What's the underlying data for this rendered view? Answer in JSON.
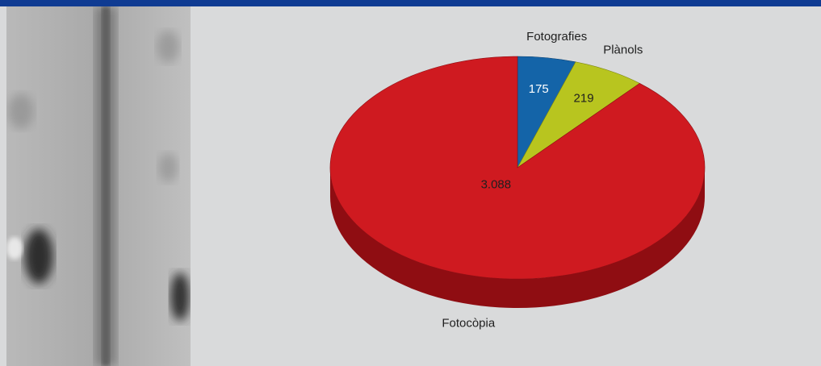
{
  "colors": {
    "top_bar": "#0f3b92",
    "chart_background": "#d9dadb",
    "value_text_light": "#ffffff",
    "value_text_dark": "#1f1f1f",
    "category_text": "#1f1f1f"
  },
  "chart_data": {
    "type": "pie",
    "style": "3d",
    "start_angle_deg": 0,
    "slices": [
      {
        "category": "Fotografies",
        "value": 175,
        "value_label": "175",
        "color": "#1464a8",
        "side_color": "#0b3f6e",
        "value_text": "light"
      },
      {
        "category": "Plànols",
        "value": 219,
        "value_label": "219",
        "color": "#b8c51f",
        "side_color": "#7f8914",
        "value_text": "dark"
      },
      {
        "category": "Fotocòpia",
        "value": 3088,
        "value_label": "3.088",
        "color": "#cf1a20",
        "side_color": "#8f0d12",
        "value_text": "dark"
      }
    ]
  }
}
